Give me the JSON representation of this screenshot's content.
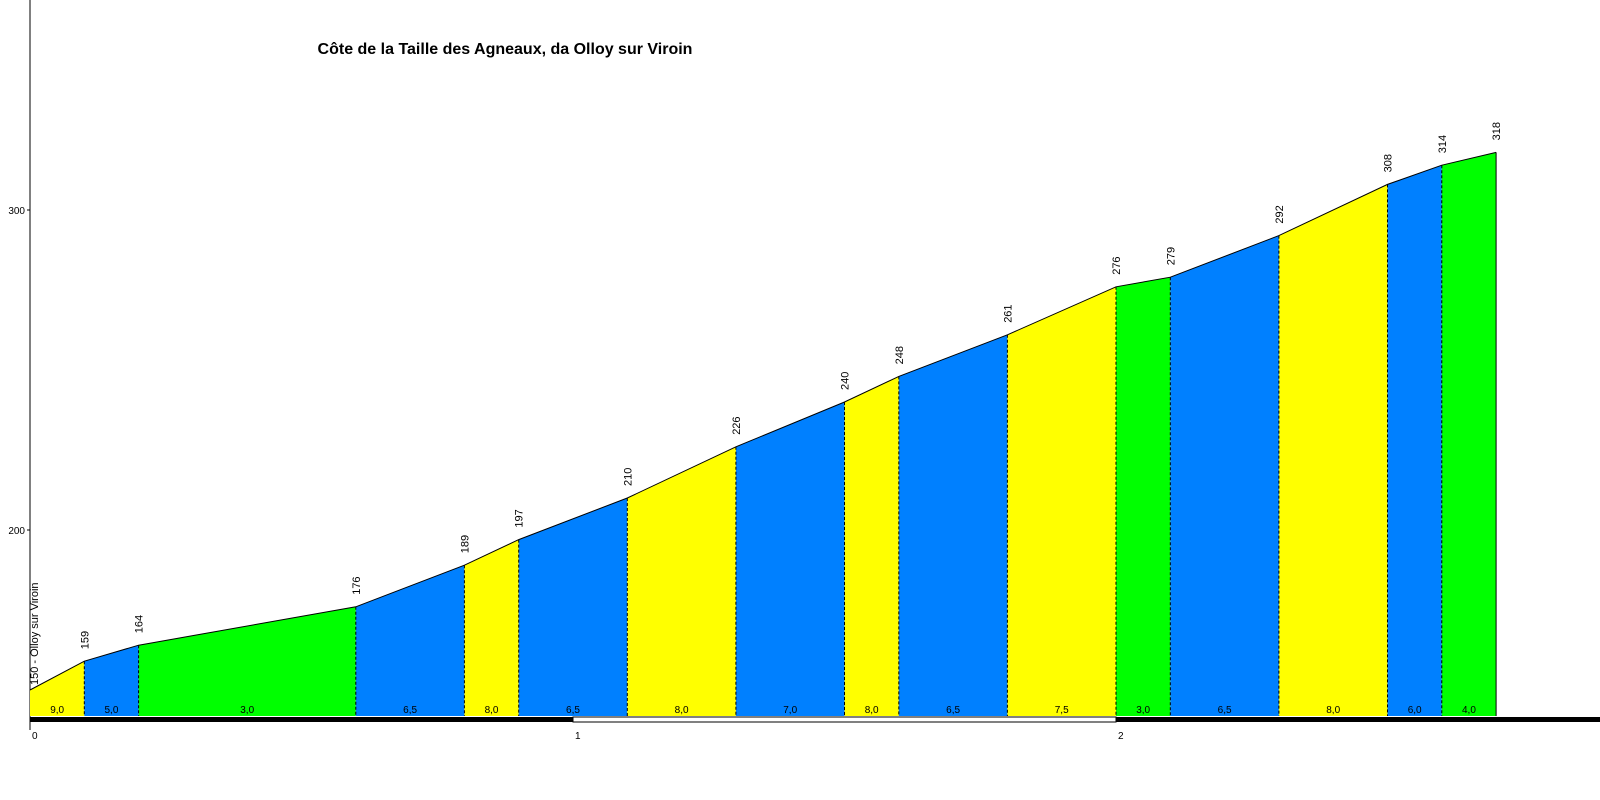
{
  "chart_data": {
    "type": "area",
    "title": "Côte de la Taille des Agneaux, da Olloy sur Viroin",
    "start_label": "150 - Olloy sur Viroin",
    "xlabel": "",
    "ylabel": "",
    "x_unit": "km",
    "y_unit": "m",
    "x_ticks": [
      "0",
      "1",
      "2"
    ],
    "y_ticks": [
      "200",
      "300"
    ],
    "xlim": [
      0,
      2.8
    ],
    "ylim": [
      141,
      367
    ],
    "grid": false,
    "points": [
      {
        "x": 0.0,
        "y": 150,
        "label": "150 - Olloy sur Viroin"
      },
      {
        "x": 0.1,
        "y": 159,
        "label": "159"
      },
      {
        "x": 0.2,
        "y": 164,
        "label": "164"
      },
      {
        "x": 0.6,
        "y": 176,
        "label": "176"
      },
      {
        "x": 0.8,
        "y": 189,
        "label": "189"
      },
      {
        "x": 0.9,
        "y": 197,
        "label": "197"
      },
      {
        "x": 1.1,
        "y": 210,
        "label": "210"
      },
      {
        "x": 1.3,
        "y": 226,
        "label": "226"
      },
      {
        "x": 1.5,
        "y": 240,
        "label": "240"
      },
      {
        "x": 1.6,
        "y": 248,
        "label": "248"
      },
      {
        "x": 1.8,
        "y": 261,
        "label": "261"
      },
      {
        "x": 2.0,
        "y": 276,
        "label": "276"
      },
      {
        "x": 2.1,
        "y": 279,
        "label": "279"
      },
      {
        "x": 2.3,
        "y": 292,
        "label": "292"
      },
      {
        "x": 2.5,
        "y": 308,
        "label": "308"
      },
      {
        "x": 2.6,
        "y": 314,
        "label": "314"
      },
      {
        "x": 2.7,
        "y": 318,
        "label": "318"
      }
    ],
    "segments": [
      {
        "gradient": "9,0",
        "color": "#ffff00"
      },
      {
        "gradient": "5,0",
        "color": "#0080ff"
      },
      {
        "gradient": "3,0",
        "color": "#00ff00"
      },
      {
        "gradient": "6,5",
        "color": "#0080ff"
      },
      {
        "gradient": "8,0",
        "color": "#ffff00"
      },
      {
        "gradient": "6,5",
        "color": "#0080ff"
      },
      {
        "gradient": "8,0",
        "color": "#ffff00"
      },
      {
        "gradient": "7,0",
        "color": "#0080ff"
      },
      {
        "gradient": "8,0",
        "color": "#ffff00"
      },
      {
        "gradient": "6,5",
        "color": "#0080ff"
      },
      {
        "gradient": "7,5",
        "color": "#ffff00"
      },
      {
        "gradient": "3,0",
        "color": "#00ff00"
      },
      {
        "gradient": "6,5",
        "color": "#0080ff"
      },
      {
        "gradient": "8,0",
        "color": "#ffff00"
      },
      {
        "gradient": "6,0",
        "color": "#0080ff"
      },
      {
        "gradient": "4,0",
        "color": "#00ff00"
      }
    ]
  }
}
